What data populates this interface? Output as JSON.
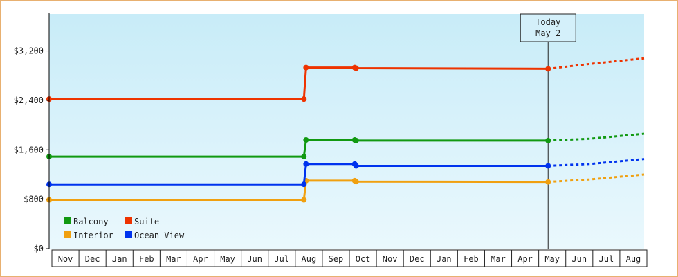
{
  "chart_data": {
    "type": "line",
    "title": "",
    "xlabel": "",
    "ylabel": "",
    "ylim": [
      0,
      3800
    ],
    "x_tick_labels": [
      "Nov",
      "Dec",
      "Jan",
      "Feb",
      "Mar",
      "Apr",
      "May",
      "Jun",
      "Jul",
      "Aug",
      "Sep",
      "Oct",
      "Nov",
      "Dec",
      "Jan",
      "Feb",
      "Mar",
      "Apr",
      "May",
      "Jun",
      "Jul",
      "Aug"
    ],
    "y_ticks": [
      0,
      800,
      1600,
      2400,
      3200
    ],
    "y_tick_labels": [
      "$0",
      "$800",
      "$1,600",
      "$2,400",
      "$3,200"
    ],
    "today_marker": {
      "line1": "Today",
      "line2": "May 2",
      "x": 18.45
    },
    "grid": false,
    "legend_position": "bottom-left",
    "colors": {
      "Balcony": "#119911",
      "Suite": "#ee3300",
      "Interior": "#f0a010",
      "Ocean View": "#0033ee",
      "axis": "#000000",
      "background_top": "#c8ecf8",
      "background_bottom": "#eaf8fd",
      "frame": "#e8b070"
    },
    "series": [
      {
        "name": "Balcony",
        "points": [
          [
            0,
            1490
          ],
          [
            9.42,
            1490
          ],
          [
            9.5,
            1760
          ],
          [
            11.3,
            1760
          ],
          [
            11.35,
            1750
          ],
          [
            18.45,
            1750
          ]
        ],
        "forecast": [
          [
            18.45,
            1750
          ],
          [
            20,
            1780
          ],
          [
            22,
            1860
          ]
        ]
      },
      {
        "name": "Suite",
        "points": [
          [
            0,
            2420
          ],
          [
            9.42,
            2420
          ],
          [
            9.5,
            2930
          ],
          [
            11.3,
            2930
          ],
          [
            11.35,
            2920
          ],
          [
            18.45,
            2910
          ]
        ],
        "forecast": [
          [
            18.45,
            2910
          ],
          [
            20,
            2990
          ],
          [
            22,
            3080
          ]
        ]
      },
      {
        "name": "Interior",
        "points": [
          [
            0,
            790
          ],
          [
            9.42,
            790
          ],
          [
            9.5,
            1100
          ],
          [
            11.3,
            1100
          ],
          [
            11.35,
            1085
          ],
          [
            18.45,
            1080
          ]
        ],
        "forecast": [
          [
            18.45,
            1080
          ],
          [
            20,
            1120
          ],
          [
            22,
            1200
          ]
        ]
      },
      {
        "name": "Ocean View",
        "points": [
          [
            0,
            1040
          ],
          [
            9.42,
            1040
          ],
          [
            9.5,
            1370
          ],
          [
            11.3,
            1370
          ],
          [
            11.35,
            1340
          ],
          [
            18.45,
            1340
          ]
        ],
        "forecast": [
          [
            18.45,
            1340
          ],
          [
            20,
            1370
          ],
          [
            22,
            1450
          ]
        ]
      }
    ],
    "legend": [
      "Balcony",
      "Suite",
      "Interior",
      "Ocean View"
    ]
  }
}
